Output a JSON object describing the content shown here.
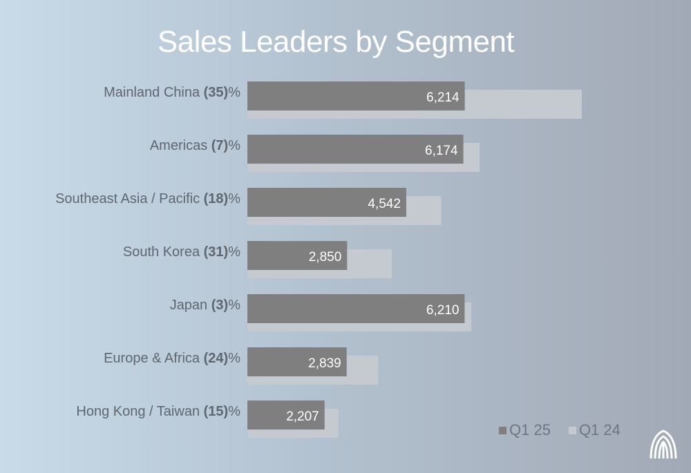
{
  "title": "Sales Leaders by Segment",
  "chart_data": {
    "type": "bar",
    "orientation": "horizontal",
    "categories": [
      {
        "name": "Mainland China",
        "change": "(35)",
        "suffix": "%"
      },
      {
        "name": "Americas",
        "change": "(7)",
        "suffix": "%"
      },
      {
        "name": "Southeast Asia / Pacific ",
        "change": "(18)",
        "suffix": "%"
      },
      {
        "name": "South Korea",
        "change": "(31)",
        "suffix": "%"
      },
      {
        "name": "Japan",
        "change": "(3)",
        "suffix": "%"
      },
      {
        "name": "Europe & Africa",
        "change": "(24)",
        "suffix": "%"
      },
      {
        "name": "Hong Kong / Taiwan",
        "change": "(15)",
        "suffix": "%"
      }
    ],
    "series": [
      {
        "name": "Q1 25",
        "values": [
          6214,
          6174,
          4542,
          2850,
          6210,
          2839,
          2207
        ],
        "labels": [
          "6,214",
          "6,174",
          "4,542",
          "2,850",
          "6,210",
          "2,839",
          "2,207"
        ],
        "color": "#7f7f7f"
      },
      {
        "name": "Q1 24",
        "values": [
          9560,
          6640,
          5540,
          4130,
          6400,
          3735,
          2600
        ],
        "color": "#c5cad1"
      }
    ],
    "xlim": [
      0,
      9560
    ],
    "grid": false,
    "legend": "bottom-right"
  },
  "colors": {
    "label_value": "#ffffff"
  },
  "logo": "nu-skin-logo-icon"
}
